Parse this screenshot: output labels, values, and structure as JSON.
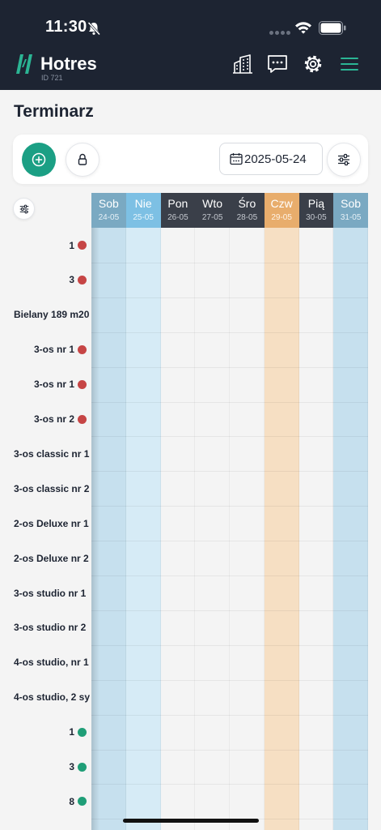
{
  "status_bar": {
    "time": "11:30"
  },
  "header": {
    "logo_text": "Hotres",
    "logo_sub": "ID 721"
  },
  "page": {
    "title": "Terminarz"
  },
  "toolbar": {
    "date_value": "2025-05-24"
  },
  "calendar": {
    "days": [
      {
        "name": "Sob",
        "date": "24-05",
        "kind": "weekend"
      },
      {
        "name": "Nie",
        "date": "25-05",
        "kind": "weekend-active"
      },
      {
        "name": "Pon",
        "date": "26-05",
        "kind": "weekday"
      },
      {
        "name": "Wto",
        "date": "27-05",
        "kind": "weekday"
      },
      {
        "name": "Śro",
        "date": "28-05",
        "kind": "weekday"
      },
      {
        "name": "Czw",
        "date": "29-05",
        "kind": "holiday"
      },
      {
        "name": "Pią",
        "date": "30-05",
        "kind": "weekday"
      },
      {
        "name": "Sob",
        "date": "31-05",
        "kind": "weekend"
      }
    ],
    "rooms": [
      {
        "name": "1",
        "status": "red"
      },
      {
        "name": "3",
        "status": "red"
      },
      {
        "name": "Bielany 189 m20",
        "status": ""
      },
      {
        "name": "3-os nr 1",
        "status": "red"
      },
      {
        "name": "3-os nr 1",
        "status": "red"
      },
      {
        "name": "3-os nr 2",
        "status": "red"
      },
      {
        "name": "3-os classic nr 1",
        "status": ""
      },
      {
        "name": "3-os classic nr 2",
        "status": ""
      },
      {
        "name": "2-os Deluxe nr 1",
        "status": ""
      },
      {
        "name": "2-os Deluxe nr 2",
        "status": ""
      },
      {
        "name": "3-os studio nr 1",
        "status": ""
      },
      {
        "name": "3-os studio nr 2",
        "status": ""
      },
      {
        "name": "4-os studio, nr 1",
        "status": ""
      },
      {
        "name": "4-os studio, 2 sy",
        "status": ""
      },
      {
        "name": "1",
        "status": "green"
      },
      {
        "name": "3",
        "status": "green"
      },
      {
        "name": "8",
        "status": "green"
      },
      {
        "name": "",
        "status": "green"
      }
    ]
  },
  "colors": {
    "header_bg": "#1d2432",
    "accent": "#1b9f84",
    "status_red": "#c64545",
    "status_green": "#1f9e77",
    "weekend_head": "#7aa9c2",
    "weekend_col": "#c6e0ee",
    "weekend_active_head": "#7dc0e4",
    "weekend_active_col": "#d6ebf6",
    "weekday_head": "#3a3f49",
    "holiday_head": "#e8ad6c",
    "holiday_col": "#f6dfc3"
  }
}
